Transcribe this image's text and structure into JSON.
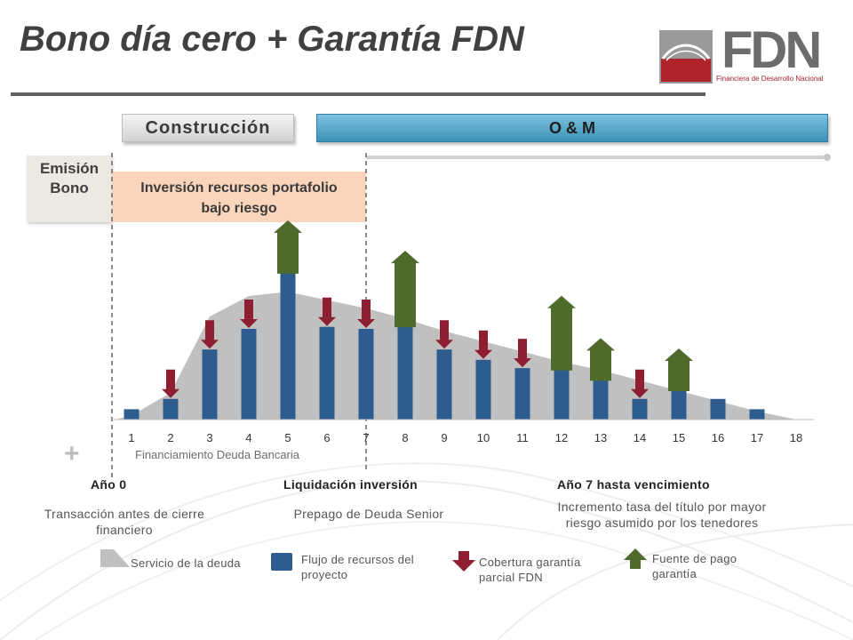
{
  "header": {
    "title": "Bono día cero + Garantía FDN",
    "logo_text": "FDN",
    "logo_subtitle": "Financiera de Desarrollo Nacional"
  },
  "phases": {
    "construccion": "Construcción",
    "om": "O & M",
    "emision_line1": "Emisión",
    "emision_line2": "Bono",
    "inversion_line1": "Inversión recursos portafolio",
    "inversion_line2": "bajo riesgo"
  },
  "financiamiento_label": "Financiamiento Deuda Bancaria",
  "sections": {
    "ano0_title": "Año 0",
    "ano0_text1": "Transacción antes de cierre",
    "ano0_text2": "financiero",
    "liq_title": "Liquidación inversión",
    "liq_text": "Prepago de Deuda Senior",
    "ano7_title": "Año 7 hasta vencimiento",
    "ano7_text1": "Incremento tasa del título por mayor",
    "ano7_text2": "riesgo asumido por los tenedores"
  },
  "legend": {
    "servicio": "Servicio de la deuda",
    "flujo_line1": "Flujo de recursos del",
    "flujo_line2": "proyecto",
    "cobertura_line1": "Cobertura garantía",
    "cobertura_line2": "parcial FDN",
    "fuente_line1": "Fuente de pago",
    "fuente_line2": "garantía"
  },
  "colors": {
    "bar": "#2f5c8f",
    "area": "#c0c0c0",
    "red_arrow": "#8e1f33",
    "green_arrow": "#4f6b2c",
    "om_blue": "#4aa3c8",
    "inversion_bg": "#fad5bb"
  },
  "chart_data": {
    "type": "bar",
    "categories": [
      "1",
      "2",
      "3",
      "4",
      "5",
      "6",
      "7",
      "8",
      "9",
      "10",
      "11",
      "12",
      "13",
      "14",
      "15",
      "16",
      "17",
      "18"
    ],
    "series": [
      {
        "name": "Flujo de recursos del proyecto",
        "values": [
          0.5,
          1.0,
          3.4,
          4.4,
          7.6,
          4.5,
          4.4,
          5.0,
          3.4,
          2.9,
          2.5,
          2.9,
          2.4,
          1.0,
          1.9,
          1.0,
          0.5,
          0
        ]
      },
      {
        "name": "Servicio de la deuda",
        "values": [
          0.2,
          1.3,
          5.0,
          6.0,
          6.2,
          5.8,
          5.4,
          4.9,
          4.3,
          3.8,
          3.3,
          2.8,
          2.4,
          1.9,
          1.4,
          0.9,
          0.4,
          0
        ]
      }
    ],
    "cobertura_garantia_parcial_fdn": [
      2,
      3,
      4,
      6,
      7,
      9,
      10,
      11,
      14
    ],
    "fuente_de_pago_garantia": [
      5,
      8,
      12,
      13,
      15
    ],
    "ylim": [
      0,
      8.2
    ],
    "xlabel": "",
    "ylabel": ""
  }
}
